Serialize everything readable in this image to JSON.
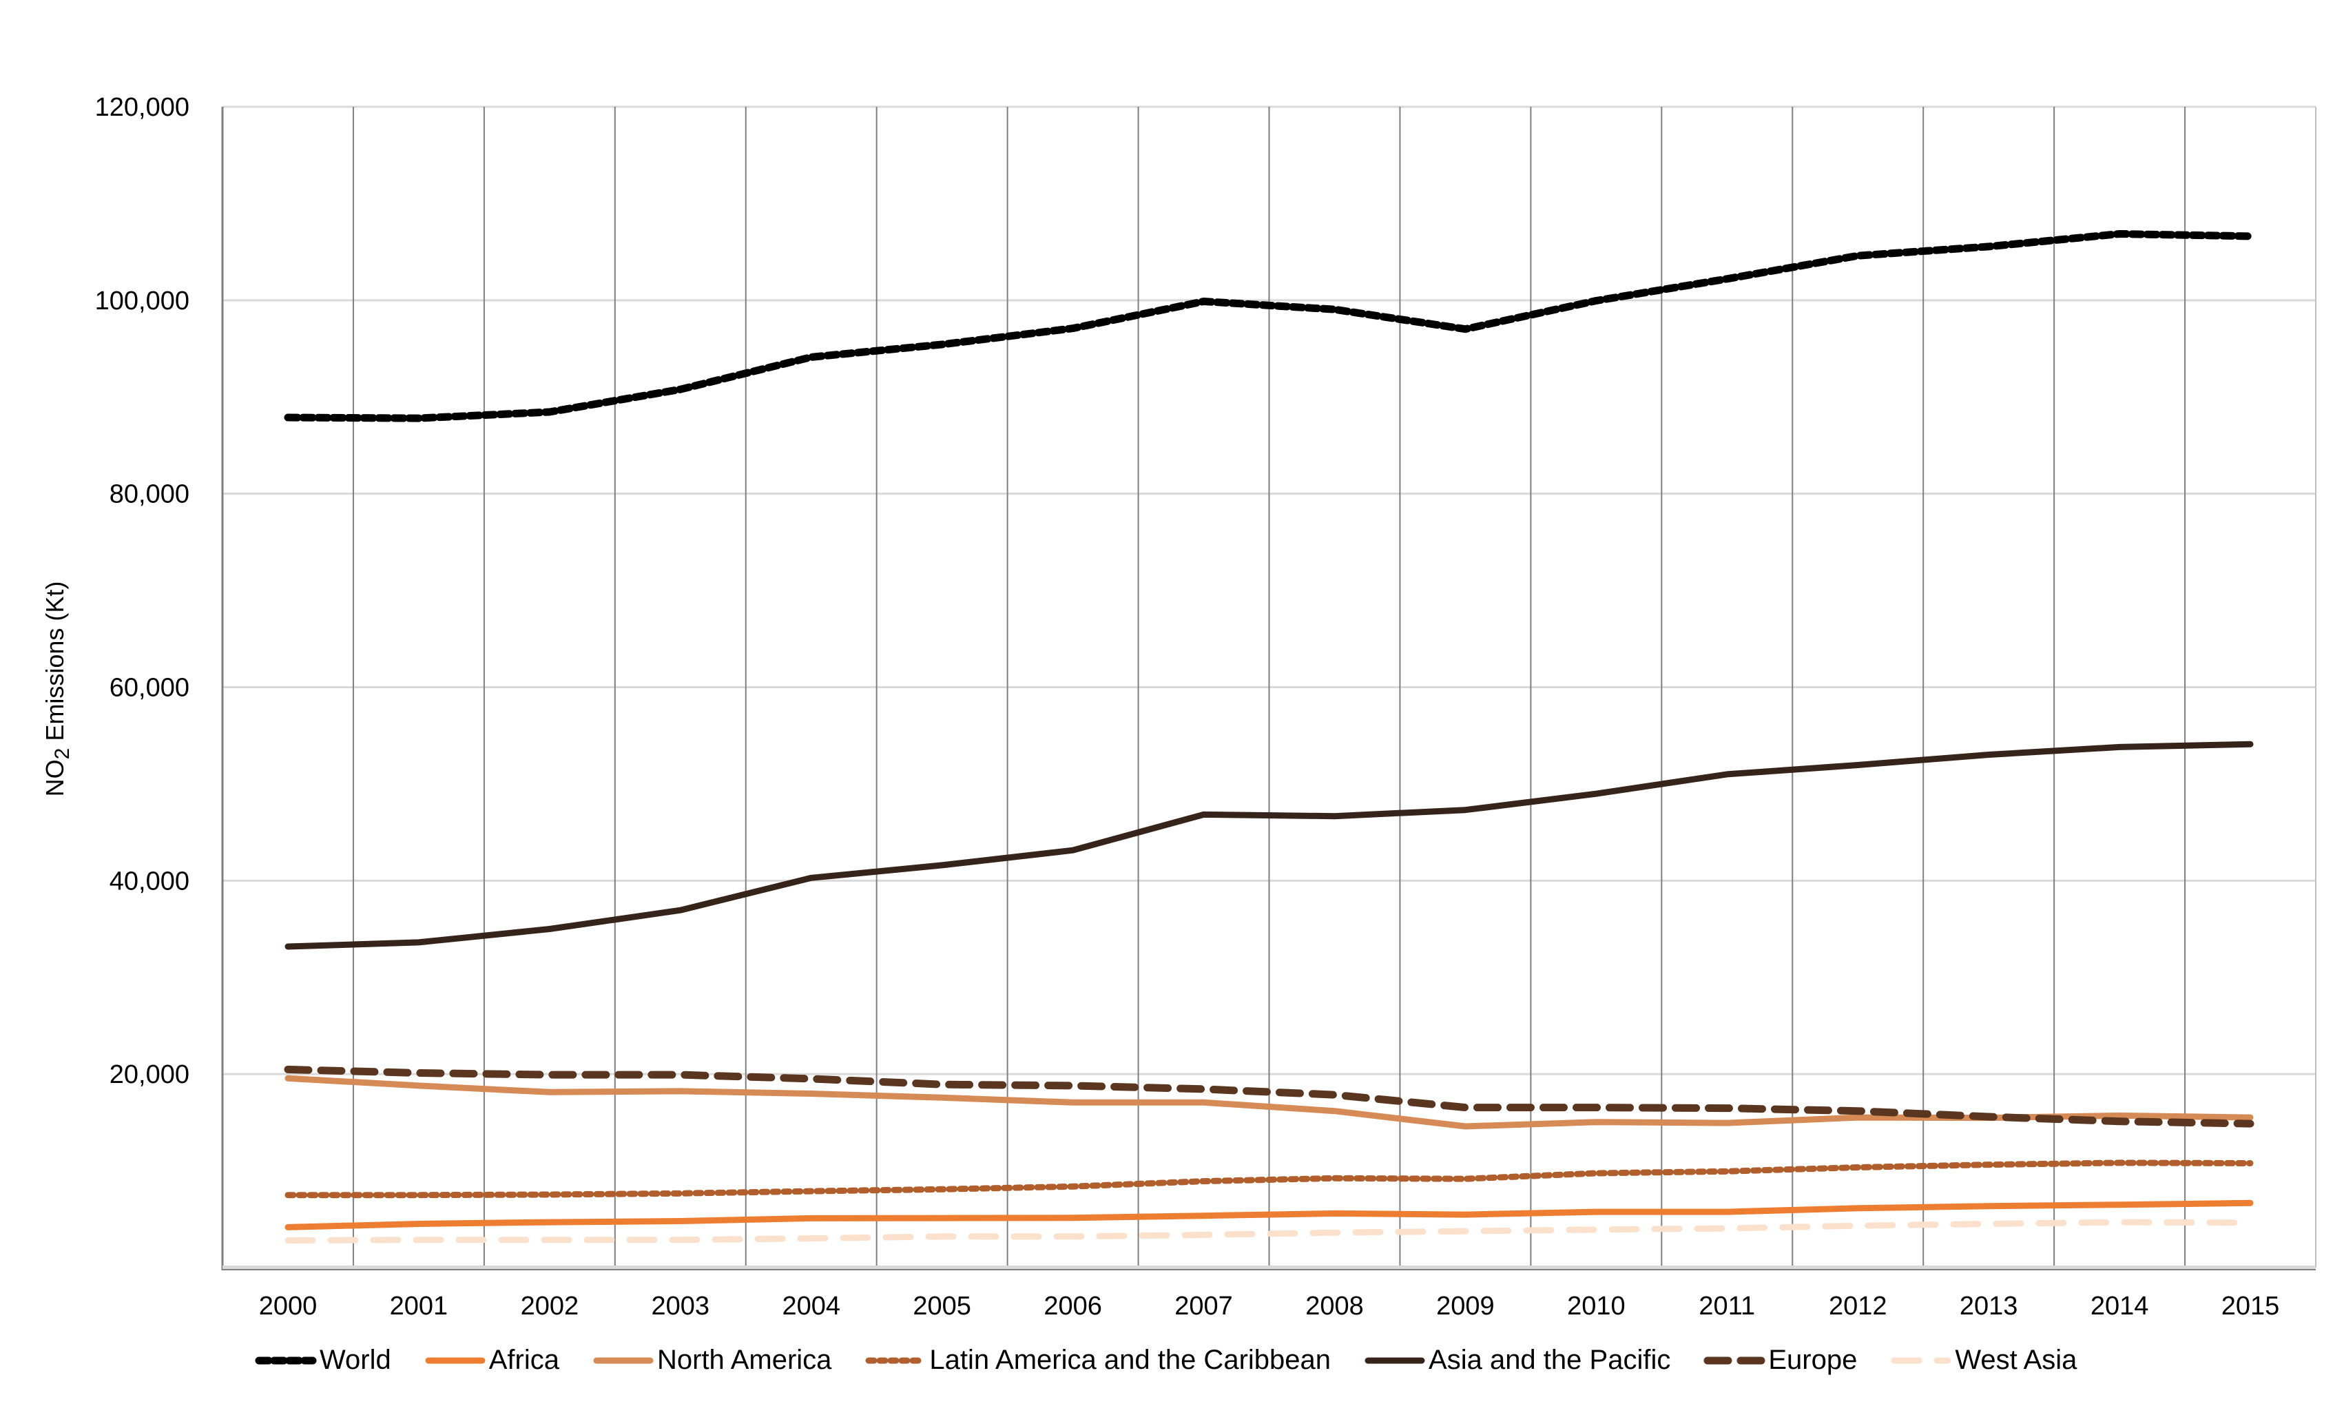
{
  "chart_data": {
    "type": "line",
    "title": "",
    "xlabel": "",
    "ylabel": "NO2 Emissions (Kt)",
    "ylabel_main": "NO",
    "ylabel_sub": "2",
    "ylabel_rest": " Emissions (Kt)",
    "ylim": [
      0,
      120000
    ],
    "yticks": [
      "20,000",
      "40,000",
      "60,000",
      "80,000",
      "100,000",
      "120,000"
    ],
    "ytick_values": [
      20000,
      40000,
      60000,
      80000,
      100000,
      120000
    ],
    "grid": "horizontal and vertical",
    "legend_position": "bottom",
    "categories": [
      "2000",
      "2001",
      "2002",
      "2003",
      "2004",
      "2005",
      "2006",
      "2007",
      "2008",
      "2009",
      "2010",
      "2011",
      "2012",
      "2013",
      "2014",
      "2015"
    ],
    "highlighted_category": "2013",
    "series": [
      {
        "name": "World",
        "color": "#000000",
        "style": "dotted-heavy",
        "values": [
          87880,
          87800,
          88450,
          90790,
          94120,
          95430,
          97100,
          99880,
          99050,
          97020,
          99950,
          102210,
          104600,
          105550,
          106860,
          106620
        ]
      },
      {
        "name": "Africa",
        "color": "#ED7D31",
        "style": "solid",
        "values": [
          4170,
          4520,
          4690,
          4810,
          5100,
          5120,
          5140,
          5360,
          5600,
          5480,
          5760,
          5760,
          6140,
          6360,
          6500,
          6670
        ]
      },
      {
        "name": "North America",
        "color": "#D68A55",
        "style": "solid",
        "values": [
          19570,
          18810,
          18140,
          18240,
          17980,
          17570,
          17070,
          17070,
          16190,
          14600,
          15050,
          14950,
          15520,
          15480,
          15710,
          15520
        ]
      },
      {
        "name": "Latin America and the Caribbean",
        "color": "#B05F2C",
        "style": "dotted",
        "values": [
          7500,
          7500,
          7550,
          7670,
          7900,
          8100,
          8380,
          8930,
          9240,
          9170,
          9760,
          9950,
          10360,
          10640,
          10830,
          10790
        ]
      },
      {
        "name": "Asia and the Pacific",
        "color": "#36231A",
        "style": "solid",
        "values": [
          33190,
          33620,
          35000,
          36950,
          40290,
          41600,
          43140,
          46830,
          46670,
          47310,
          48980,
          51000,
          51950,
          53020,
          53810,
          54100
        ]
      },
      {
        "name": "Europe",
        "color": "#5A3620",
        "style": "dashed",
        "values": [
          20480,
          20120,
          19930,
          19930,
          19520,
          18930,
          18810,
          18450,
          17860,
          16550,
          16550,
          16480,
          16190,
          15600,
          15120,
          14880
        ]
      },
      {
        "name": "West Asia",
        "color": "#FBE0CC",
        "style": "dashed-light",
        "values": [
          2810,
          2860,
          2860,
          2860,
          3020,
          3210,
          3210,
          3380,
          3620,
          3760,
          3930,
          4050,
          4330,
          4520,
          4690,
          4640
        ]
      }
    ]
  }
}
